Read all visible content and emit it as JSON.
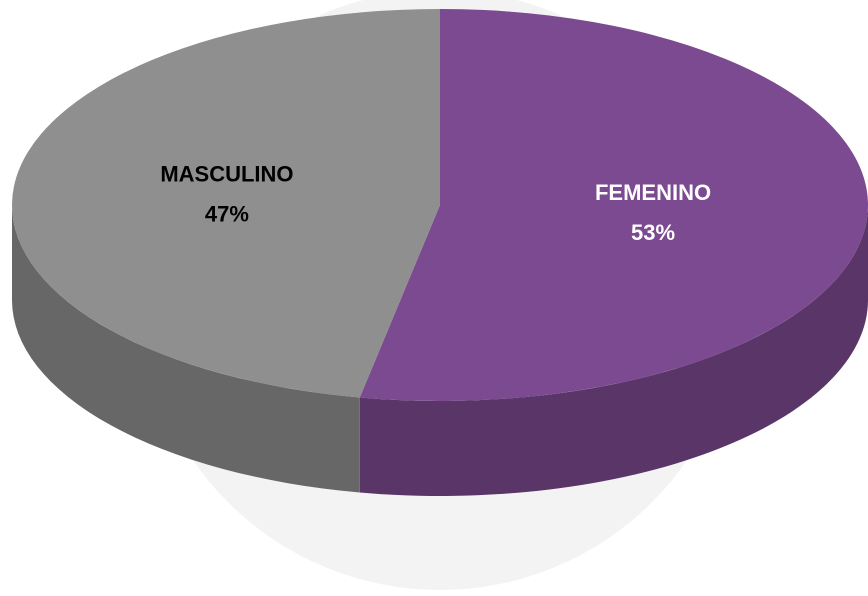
{
  "chart_data": {
    "type": "pie",
    "categories": [
      "FEMENINO",
      "MASCULINO"
    ],
    "values": [
      53,
      47
    ],
    "value_labels": [
      "53%",
      "47%"
    ],
    "colors": [
      "#7b4a90",
      "#8f8f8f"
    ]
  }
}
